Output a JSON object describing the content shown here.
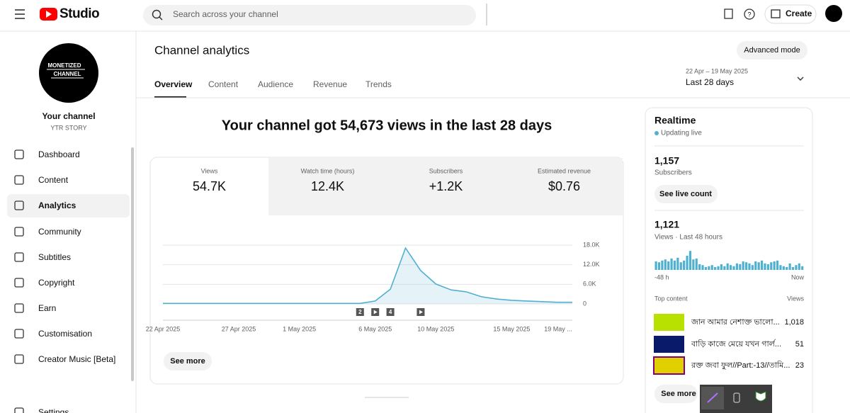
{
  "header": {
    "logo": "Studio",
    "search_placeholder": "Search across your channel",
    "create": "Create"
  },
  "sidebar": {
    "avatar_lines": [
      "MONETIZED",
      "CHANNEL"
    ],
    "channel_label": "Your channel",
    "channel_name": "YTR STORY",
    "nav": [
      "Dashboard",
      "Content",
      "Analytics",
      "Community",
      "Subtitles",
      "Copyright",
      "Earn",
      "Customisation",
      "Creator Music [Beta]",
      "Settings"
    ]
  },
  "main": {
    "title": "Channel analytics",
    "advanced_mode": "Advanced mode",
    "tabs": [
      "Overview",
      "Content",
      "Audience",
      "Revenue",
      "Trends"
    ],
    "date_range": "22 Apr – 19 May 2025",
    "period": "Last 28 days",
    "headline": "Your channel got 54,673 views in the last 28 days",
    "metrics": [
      {
        "label": "Views",
        "value": "54.7K"
      },
      {
        "label": "Watch time (hours)",
        "value": "12.4K"
      },
      {
        "label": "Subscribers",
        "value": "+1.2K"
      },
      {
        "label": "Estimated revenue",
        "value": "$0.76"
      }
    ],
    "see_more": "See more"
  },
  "chart_data": {
    "type": "line",
    "categories": [
      "22 Apr 2025",
      null,
      null,
      null,
      null,
      "27 Apr 2025",
      null,
      null,
      null,
      "1 May 2025",
      null,
      null,
      null,
      null,
      "6 May 2025",
      null,
      null,
      null,
      "10 May 2025",
      null,
      null,
      null,
      null,
      "15 May 2025",
      null,
      null,
      null,
      "19 May ..."
    ],
    "series": [
      {
        "name": "Views",
        "color": "#4fb0d0",
        "values": [
          150,
          150,
          150,
          150,
          150,
          150,
          150,
          150,
          150,
          150,
          150,
          150,
          150,
          150,
          900,
          4500,
          17100,
          10200,
          6100,
          4300,
          3700,
          2200,
          1500,
          1100,
          900,
          700,
          500,
          500
        ]
      }
    ],
    "ylim": [
      0,
      18000
    ],
    "yticks": [
      0,
      {
        "value": 6000,
        "label": "6.0K"
      },
      {
        "value": 12000,
        "label": "12.0K"
      },
      {
        "value": 18000,
        "label": "18.0K"
      }
    ],
    "grid": true,
    "annotations": [
      {
        "label": "2",
        "index": 13
      },
      {
        "label": "4",
        "index": 15
      }
    ]
  },
  "realtime": {
    "title": "Realtime",
    "status": "Updating live",
    "subscribers": "1,157",
    "subscribers_label": "Subscribers",
    "live_count_button": "See live count",
    "views": "1,121",
    "views_label": "Views · Last 48 hours",
    "bars": {
      "type": "bar",
      "color": "#4fb0d0",
      "values": [
        30,
        27,
        33,
        37,
        30,
        40,
        33,
        43,
        27,
        33,
        50,
        67,
        37,
        40,
        20,
        17,
        10,
        13,
        17,
        10,
        13,
        20,
        13,
        23,
        17,
        13,
        23,
        20,
        30,
        27,
        23,
        17,
        30,
        27,
        33,
        23,
        20,
        27,
        30,
        33,
        17,
        13,
        10,
        23,
        10,
        17,
        23,
        13
      ],
      "ylim": [
        0,
        70
      ],
      "start_label": "-48 h",
      "end_label": "Now"
    },
    "top_content_label": "Top content",
    "views_column": "Views",
    "top_content": [
      {
        "title": "জান আমার নেশাক্ত ভালো...",
        "views": "1,018"
      },
      {
        "title": "বাড়ি কাজে মেয়ে যখন গার্ল...",
        "views": "51"
      },
      {
        "title": "রক্ত জবা ফুল//Part:-13//তামি...",
        "views": "23"
      }
    ],
    "see_more": "See more"
  }
}
